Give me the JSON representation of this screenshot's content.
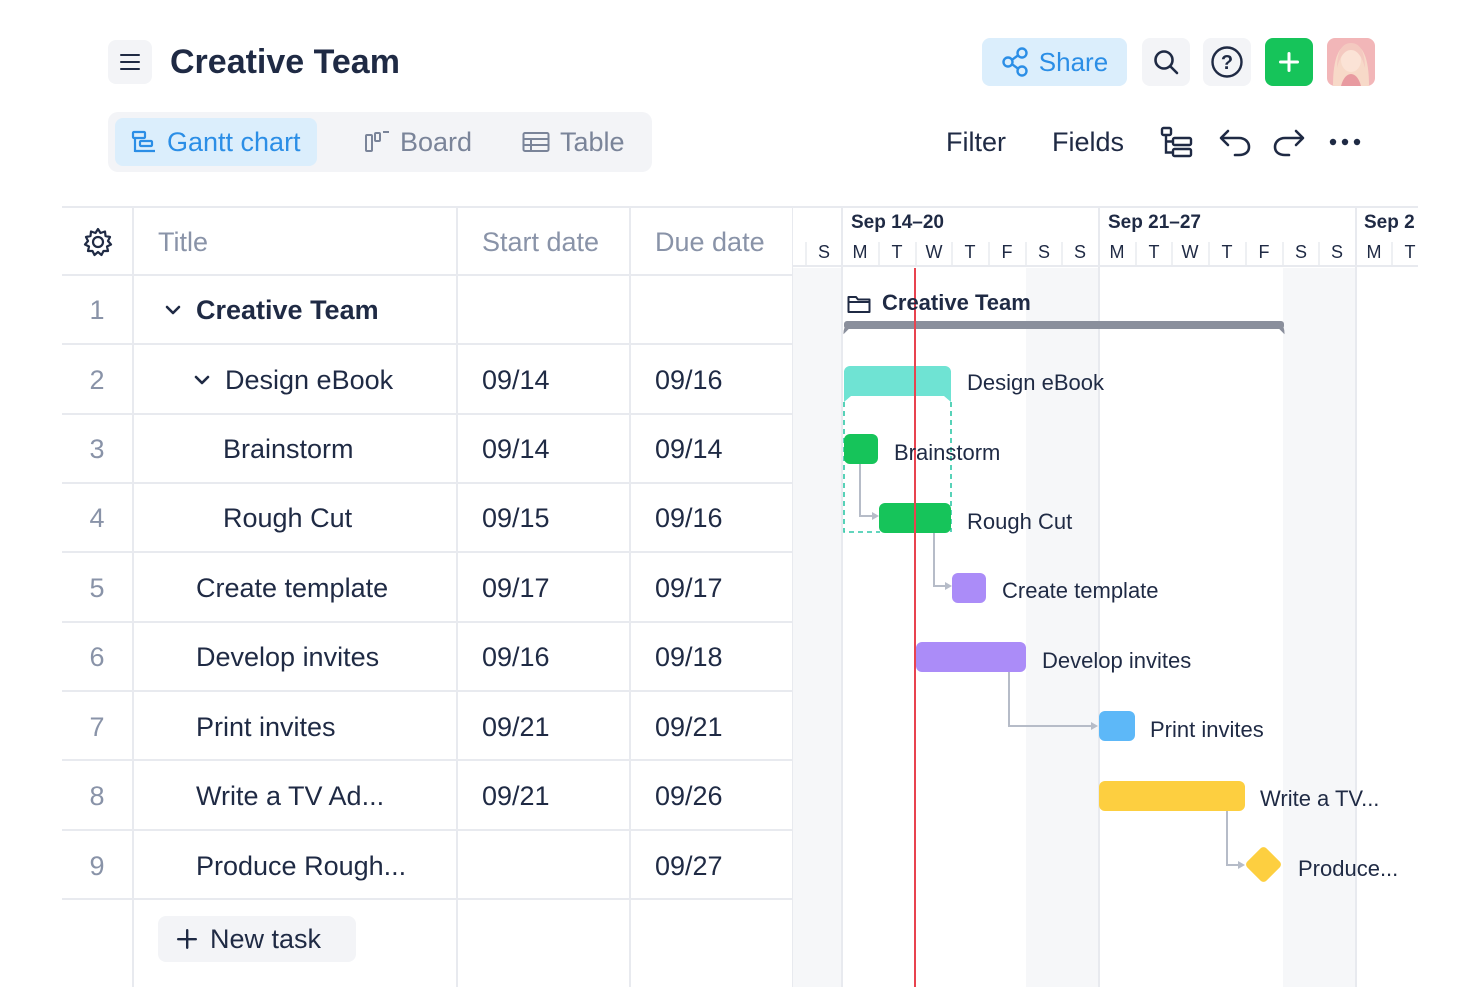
{
  "header": {
    "title": "Creative Team",
    "share_label": "Share"
  },
  "views": {
    "gantt": "Gantt chart",
    "board": "Board",
    "table": "Table"
  },
  "toolbar": {
    "filter": "Filter",
    "fields": "Fields"
  },
  "table": {
    "columns": [
      "Title",
      "Start date",
      "Due date"
    ],
    "rows": [
      {
        "num": "1",
        "title": "Creative Team",
        "start": "",
        "due": ""
      },
      {
        "num": "2",
        "title": "Design eBook",
        "start": "09/14",
        "due": "09/16"
      },
      {
        "num": "3",
        "title": "Brainstorm",
        "start": "09/14",
        "due": "09/14"
      },
      {
        "num": "4",
        "title": "Rough Cut",
        "start": "09/15",
        "due": "09/16"
      },
      {
        "num": "5",
        "title": "Create template",
        "start": "09/17",
        "due": "09/17"
      },
      {
        "num": "6",
        "title": "Develop invites",
        "start": "09/16",
        "due": "09/18"
      },
      {
        "num": "7",
        "title": "Print invites",
        "start": "09/21",
        "due": "09/21"
      },
      {
        "num": "8",
        "title": "Write a TV Ad...",
        "start": "09/21",
        "due": "09/26"
      },
      {
        "num": "9",
        "title": "Produce Rough...",
        "start": "",
        "due": "09/27"
      }
    ],
    "new_task_label": "New task"
  },
  "gantt": {
    "weeks": [
      "Sep 14–20",
      "Sep 21–27",
      "Sep 2"
    ],
    "days": [
      "S",
      "M",
      "T",
      "W",
      "T",
      "F",
      "S",
      "S",
      "M",
      "T",
      "W",
      "T",
      "F",
      "S",
      "S",
      "M",
      "T"
    ],
    "group_label": "Creative Team",
    "bar_labels": {
      "design_ebook": "Design eBook",
      "brainstorm": "Brainstorm",
      "rough_cut": "Rough Cut",
      "create_template": "Create template",
      "develop_invites": "Develop invites",
      "print_invites": "Print invites",
      "write_tv_ad": "Write a TV...",
      "produce_rough": "Produce..."
    },
    "colors": {
      "design_ebook": "#6fe3d3",
      "brainstorm": "#16c45a",
      "rough_cut": "#16c45a",
      "create_template": "#ab8cf8",
      "develop_invites": "#ab8cf8",
      "print_invites": "#5db8f8",
      "write_tv_ad": "#fdcf40",
      "produce_rough": "#fdcf40",
      "today_line": "#e8434f",
      "accent": "#2b8ee6"
    }
  }
}
